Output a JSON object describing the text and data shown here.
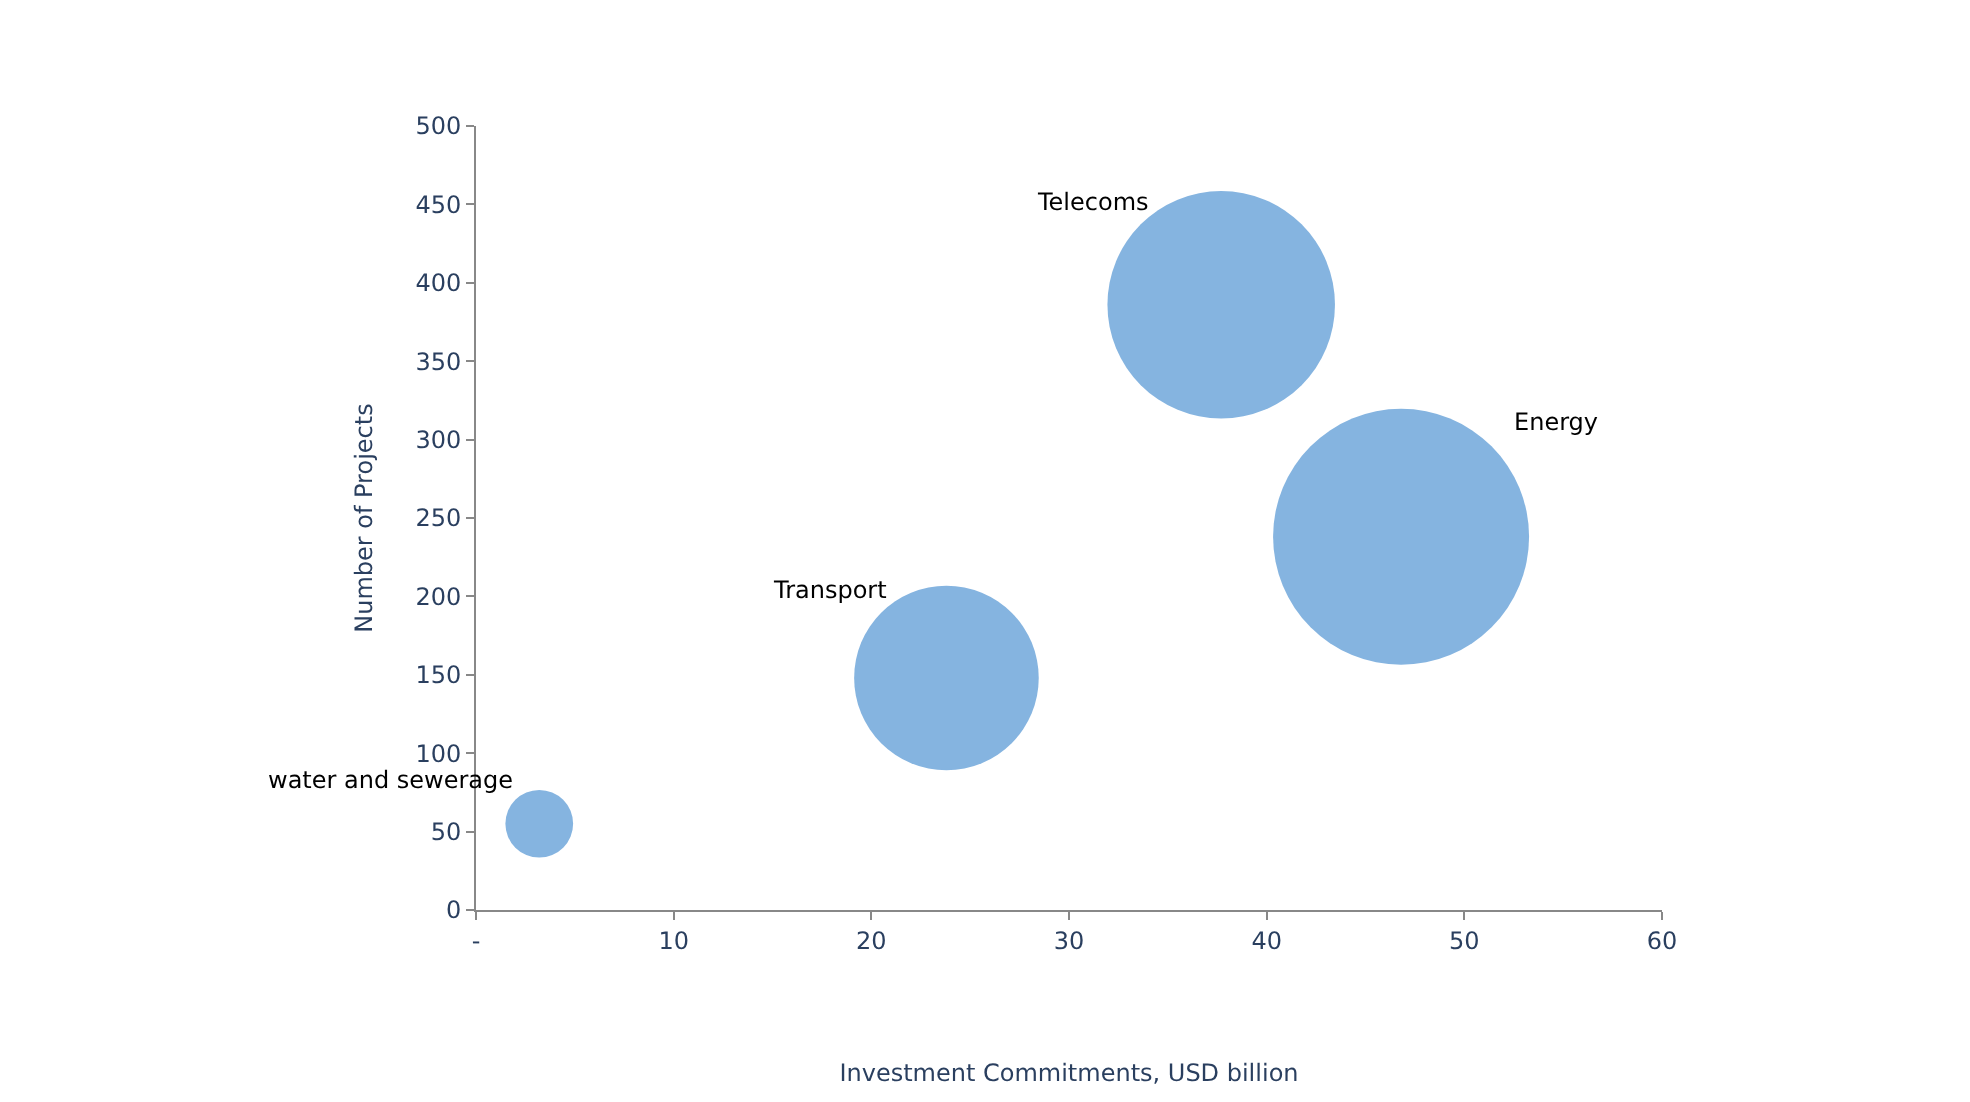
{
  "chart_data": {
    "type": "bubble",
    "xlabel": "Investment Commitments, USD billion",
    "ylabel": "Number of Projects",
    "series": [
      {
        "name": "water and sewerage",
        "color": "#85b4e0",
        "x": [
          3.2
        ],
        "values": [
          55
        ],
        "sizes": [
          0.07
        ]
      },
      {
        "name": "Transport",
        "color": "#85b4e0",
        "x": [
          23.8
        ],
        "values": [
          148
        ],
        "sizes": [
          0.52
        ]
      },
      {
        "name": "Telecoms",
        "color": "#85b4e0",
        "x": [
          37.7
        ],
        "values": [
          386
        ],
        "sizes": [
          0.79
        ]
      },
      {
        "name": "Energy",
        "color": "#85b4e0",
        "x": [
          46.8
        ],
        "values": [
          238
        ],
        "sizes": [
          1
        ]
      }
    ],
    "xlim": [
      0,
      60
    ],
    "xticks": [
      {
        "value": 0,
        "label": "-"
      },
      10,
      20,
      30,
      40,
      50,
      60
    ],
    "ylim": [
      0,
      500
    ],
    "yticks": [
      0,
      50,
      100,
      150,
      200,
      250,
      300,
      350,
      400,
      450,
      500
    ]
  }
}
